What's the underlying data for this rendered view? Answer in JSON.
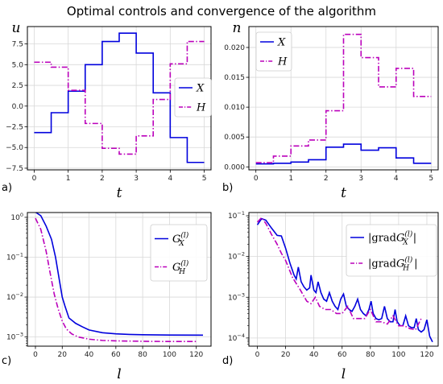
{
  "figure": {
    "title": "Optimal controls and convergence of the algorithm"
  },
  "colors": {
    "X": "#0000dd",
    "H": "#bb00bb",
    "grid": "#d8d8d8",
    "axis": "#000000"
  },
  "chart_data": [
    {
      "id": "a",
      "panel_label": "a)",
      "type": "line",
      "step": true,
      "xlabel": "t",
      "ylabel": "u",
      "xlim": [
        -0.2,
        5.2
      ],
      "ylim": [
        -7.7,
        9.6
      ],
      "xticks": [
        0,
        1,
        2,
        3,
        4,
        5
      ],
      "yticks": [
        -7.5,
        -5.0,
        -2.5,
        0.0,
        2.5,
        5.0,
        7.5
      ],
      "ytick_labels": [
        "−7.5",
        "−5.0",
        "−2.5",
        "0.0",
        "2.5",
        "5.0",
        "7.5"
      ],
      "grid": true,
      "legend_position": "right",
      "edges": [
        0,
        0.5,
        1,
        1.5,
        2,
        2.5,
        3,
        3.5,
        4,
        4.5,
        5
      ],
      "series": [
        {
          "name": "X",
          "color_key": "X",
          "style": "solid",
          "values": [
            -3.2,
            -0.8,
            1.8,
            5.0,
            7.8,
            8.8,
            6.4,
            1.6,
            -3.8,
            -6.8
          ]
        },
        {
          "name": "H",
          "color_key": "H",
          "style": "dashdot",
          "values": [
            5.3,
            4.7,
            1.9,
            -2.1,
            -5.1,
            -5.8,
            -3.6,
            0.8,
            5.1,
            7.8
          ]
        }
      ]
    },
    {
      "id": "b",
      "panel_label": "b)",
      "type": "line",
      "step": true,
      "xlabel": "t",
      "ylabel": "n",
      "xlim": [
        -0.2,
        5.2
      ],
      "ylim": [
        -0.0005,
        0.0235
      ],
      "xticks": [
        0,
        1,
        2,
        3,
        4,
        5
      ],
      "yticks": [
        0.0,
        0.005,
        0.01,
        0.015,
        0.02
      ],
      "ytick_labels": [
        "0.000",
        "0.005",
        "0.010",
        "0.015",
        "0.020"
      ],
      "grid": true,
      "legend_position": "top-left",
      "edges": [
        0,
        0.5,
        1,
        1.5,
        2,
        2.5,
        3,
        3.5,
        4,
        4.5,
        5
      ],
      "series": [
        {
          "name": "X",
          "color_key": "X",
          "style": "solid",
          "values": [
            0.0005,
            0.0006,
            0.0008,
            0.0012,
            0.0033,
            0.0038,
            0.0028,
            0.0032,
            0.0015,
            0.0006
          ]
        },
        {
          "name": "H",
          "color_key": "H",
          "style": "dashdot",
          "values": [
            0.0007,
            0.0018,
            0.0035,
            0.0045,
            0.0094,
            0.0222,
            0.0183,
            0.0134,
            0.0165,
            0.0118
          ]
        }
      ]
    },
    {
      "id": "c",
      "panel_label": "c)",
      "type": "line",
      "xlabel": "l",
      "xscale": "linear",
      "yscale": "log",
      "xlim": [
        -6,
        131
      ],
      "ylim_log10": [
        -3.23,
        0.12
      ],
      "xticks": [
        0,
        20,
        40,
        60,
        80,
        100,
        120
      ],
      "yticks_exp": [
        0,
        -1,
        -2,
        -3
      ],
      "grid": true,
      "legend_position": "top-right",
      "series": [
        {
          "name": "G",
          "sup": "(l)",
          "sub": "X",
          "color_key": "X",
          "style": "solid",
          "x": [
            0,
            4,
            8,
            12,
            15,
            18,
            20,
            22,
            25,
            30,
            35,
            40,
            50,
            60,
            70,
            80,
            100,
            125
          ],
          "y": [
            1.35,
            1.1,
            0.6,
            0.28,
            0.1,
            0.025,
            0.01,
            0.006,
            0.003,
            0.0022,
            0.0018,
            0.0015,
            0.00128,
            0.0012,
            0.00116,
            0.00114,
            0.00112,
            0.00111
          ]
        },
        {
          "name": "G",
          "sup": "(l)",
          "sub": "H",
          "color_key": "H",
          "style": "dashdot",
          "x": [
            0,
            4,
            8,
            11,
            14,
            17,
            20,
            23,
            27,
            32,
            40,
            50,
            60,
            80,
            100,
            120
          ],
          "y": [
            0.95,
            0.5,
            0.14,
            0.04,
            0.012,
            0.005,
            0.0025,
            0.0016,
            0.0012,
            0.001,
            0.00088,
            0.00082,
            0.0008,
            0.00078,
            0.00077,
            0.00077
          ]
        }
      ]
    },
    {
      "id": "d",
      "panel_label": "d)",
      "type": "line",
      "xlabel": "l",
      "xscale": "linear",
      "yscale": "log",
      "xlim": [
        -6,
        128
      ],
      "ylim_log10": [
        -4.2,
        -0.92
      ],
      "xticks": [
        0,
        20,
        40,
        60,
        80,
        100,
        120
      ],
      "yticks_exp": [
        -1,
        -2,
        -3,
        -4
      ],
      "grid": true,
      "legend_position": "top-right",
      "series": [
        {
          "name": "|gradG",
          "sup": "(l)",
          "sub": "X",
          "color_key": "X",
          "style": "solid",
          "x": [
            0,
            3,
            6,
            10,
            14,
            17,
            20,
            23,
            26,
            27.5,
            29,
            31,
            33,
            35,
            37,
            38,
            40,
            41.5,
            43,
            45,
            47,
            49,
            51,
            53,
            55,
            57,
            59,
            61,
            63,
            65,
            67,
            69,
            71,
            73,
            75,
            77,
            79,
            80.5,
            82,
            84,
            86,
            88,
            90,
            92,
            94,
            96,
            97.5,
            99,
            101,
            103,
            105,
            107,
            109,
            111,
            112.5,
            114,
            116,
            118,
            120,
            122,
            124
          ],
          "y": [
            0.06,
            0.085,
            0.078,
            0.05,
            0.033,
            0.032,
            0.016,
            0.007,
            0.0035,
            0.0028,
            0.0055,
            0.0024,
            0.0018,
            0.0015,
            0.0017,
            0.0035,
            0.0015,
            0.0013,
            0.0024,
            0.0013,
            0.0009,
            0.0008,
            0.0013,
            0.0008,
            0.0006,
            0.0005,
            0.0009,
            0.0012,
            0.0006,
            0.0005,
            0.00045,
            0.0006,
            0.0009,
            0.0005,
            0.0004,
            0.00035,
            0.0005,
            0.0008,
            0.0004,
            0.0003,
            0.00028,
            0.0003,
            0.0006,
            0.0003,
            0.00025,
            0.00025,
            0.0005,
            0.00025,
            0.0002,
            0.0002,
            0.00035,
            0.0002,
            0.00018,
            0.00018,
            0.0003,
            0.00016,
            0.00014,
            0.00016,
            0.00028,
            0.00011,
            8e-05
          ]
        },
        {
          "name": "|gradG",
          "sup": "(l)",
          "sub": "H",
          "color_key": "H",
          "style": "dashdot",
          "x": [
            0,
            3,
            6,
            10,
            14,
            17,
            20,
            25,
            30,
            35,
            38,
            41,
            44,
            48,
            52,
            56,
            60,
            64,
            68,
            72,
            76,
            80,
            84,
            88,
            92,
            96,
            100,
            104,
            108,
            112,
            116
          ],
          "y": [
            0.07,
            0.09,
            0.065,
            0.035,
            0.02,
            0.012,
            0.008,
            0.003,
            0.0016,
            0.0008,
            0.0007,
            0.001,
            0.0006,
            0.0005,
            0.0005,
            0.0004,
            0.0004,
            0.0006,
            0.0003,
            0.0003,
            0.0003,
            0.0005,
            0.00025,
            0.00025,
            0.00022,
            0.00035,
            0.0002,
            0.0002,
            0.00017,
            0.00016,
            0.0003
          ]
        }
      ]
    }
  ]
}
